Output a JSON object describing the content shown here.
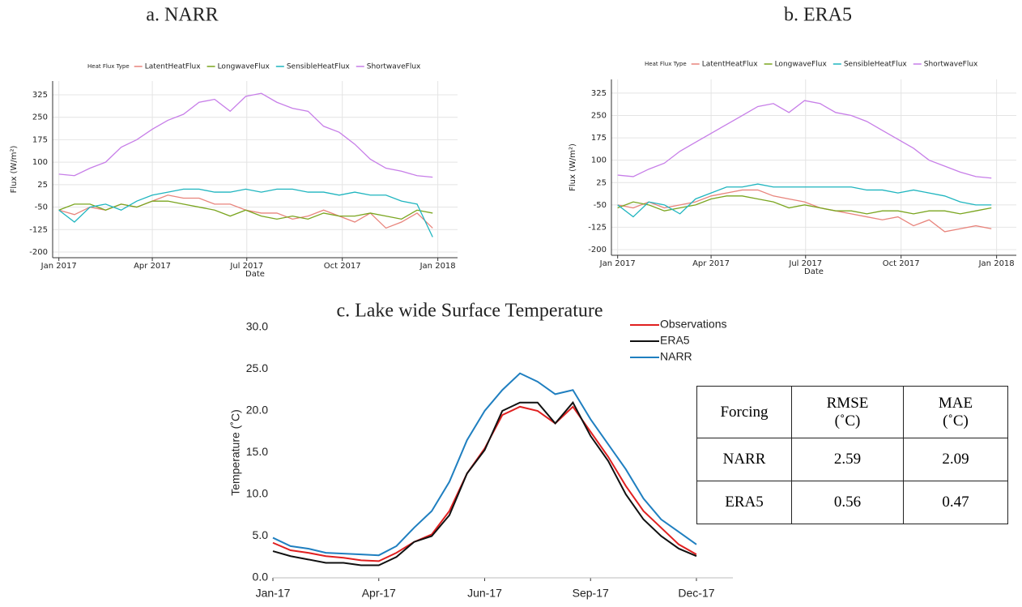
{
  "chart_data": [
    {
      "type": "line",
      "title": "a.  NARR",
      "legend_title": "Heat Flux Type",
      "xlabel": "Date",
      "ylabel": "Flux (W/m²)",
      "grid": true,
      "x": [
        0,
        15,
        30,
        45,
        60,
        75,
        90,
        105,
        120,
        135,
        150,
        165,
        180,
        195,
        210,
        225,
        240,
        255,
        270,
        285,
        300,
        315,
        330,
        345,
        360
      ],
      "xlim": [
        -6,
        384
      ],
      "xticks": [
        {
          "value": 0,
          "label": "Jan 2017"
        },
        {
          "value": 90,
          "label": "Apr 2017"
        },
        {
          "value": 181,
          "label": "Jul 2017"
        },
        {
          "value": 273,
          "label": "Oct 2017"
        },
        {
          "value": 365,
          "label": "Jan 2018"
        }
      ],
      "ylim": [
        -219,
        371
      ],
      "yticks": [
        -200,
        -125,
        -50,
        25,
        100,
        175,
        250,
        325
      ],
      "series": [
        {
          "name": "LatentHeatFlux",
          "color": "#e8847c",
          "values": [
            -60,
            -75,
            -50,
            -60,
            -40,
            -50,
            -30,
            -10,
            -20,
            -20,
            -40,
            -40,
            -60,
            -70,
            -70,
            -90,
            -80,
            -60,
            -80,
            -100,
            -70,
            -120,
            -100,
            -70,
            -120
          ]
        },
        {
          "name": "LongwaveFlux",
          "color": "#7aa51f",
          "values": [
            -60,
            -40,
            -40,
            -60,
            -40,
            -50,
            -30,
            -30,
            -40,
            -50,
            -60,
            -80,
            -60,
            -80,
            -90,
            -80,
            -90,
            -70,
            -80,
            -80,
            -70,
            -80,
            -90,
            -60,
            -70
          ]
        },
        {
          "name": "SensibleHeatFlux",
          "color": "#1fb5bf",
          "values": [
            -60,
            -100,
            -50,
            -40,
            -60,
            -30,
            -10,
            0,
            10,
            10,
            0,
            0,
            10,
            0,
            10,
            10,
            0,
            0,
            -10,
            0,
            -10,
            -10,
            -30,
            -40,
            -150
          ]
        },
        {
          "name": "ShortwaveFlux",
          "color": "#c77ee8",
          "values": [
            60,
            55,
            80,
            100,
            150,
            175,
            210,
            240,
            260,
            300,
            310,
            270,
            320,
            330,
            300,
            280,
            270,
            220,
            200,
            160,
            110,
            80,
            70,
            55,
            50
          ]
        }
      ]
    },
    {
      "type": "line",
      "title": "b.  ERA5",
      "legend_title": "Heat Flux Type",
      "xlabel": "Date",
      "ylabel": "Flux (W/m²)",
      "grid": true,
      "x": [
        0,
        15,
        30,
        45,
        60,
        75,
        90,
        105,
        120,
        135,
        150,
        165,
        180,
        195,
        210,
        225,
        240,
        255,
        270,
        285,
        300,
        315,
        330,
        345,
        360
      ],
      "xlim": [
        -6,
        384
      ],
      "xticks": [
        {
          "value": 0,
          "label": "Jan 2017"
        },
        {
          "value": 90,
          "label": "Apr 2017"
        },
        {
          "value": 181,
          "label": "Jul 2017"
        },
        {
          "value": 273,
          "label": "Oct 2017"
        },
        {
          "value": 365,
          "label": "Jan 2018"
        }
      ],
      "ylim": [
        -219,
        371
      ],
      "yticks": [
        -200,
        -125,
        -50,
        25,
        100,
        175,
        250,
        325
      ],
      "series": [
        {
          "name": "LatentHeatFlux",
          "color": "#e8847c",
          "values": [
            -50,
            -60,
            -40,
            -60,
            -50,
            -40,
            -20,
            -10,
            0,
            0,
            -20,
            -30,
            -40,
            -60,
            -70,
            -80,
            -90,
            -100,
            -90,
            -120,
            -100,
            -140,
            -130,
            -120,
            -130
          ]
        },
        {
          "name": "LongwaveFlux",
          "color": "#7aa51f",
          "values": [
            -60,
            -40,
            -50,
            -70,
            -60,
            -50,
            -30,
            -20,
            -20,
            -30,
            -40,
            -60,
            -50,
            -60,
            -70,
            -70,
            -80,
            -70,
            -70,
            -80,
            -70,
            -70,
            -80,
            -70,
            -60
          ]
        },
        {
          "name": "SensibleHeatFlux",
          "color": "#1fb5bf",
          "values": [
            -50,
            -90,
            -40,
            -50,
            -80,
            -30,
            -10,
            10,
            10,
            20,
            10,
            10,
            10,
            10,
            10,
            10,
            0,
            0,
            -10,
            0,
            -10,
            -20,
            -40,
            -50,
            -50
          ]
        },
        {
          "name": "ShortwaveFlux",
          "color": "#c77ee8",
          "values": [
            50,
            45,
            70,
            90,
            130,
            160,
            190,
            220,
            250,
            280,
            290,
            260,
            300,
            290,
            260,
            250,
            230,
            200,
            170,
            140,
            100,
            80,
            60,
            45,
            40
          ]
        }
      ]
    },
    {
      "type": "line",
      "title": "c.  Lake wide Surface Temperature",
      "ylabel": "Temperature (˚C)",
      "grid": false,
      "x": [
        0,
        15,
        30,
        45,
        60,
        75,
        90,
        105,
        120,
        135,
        150,
        165,
        180,
        195,
        210,
        225,
        240,
        255,
        270,
        285,
        300,
        315,
        330,
        345,
        360
      ],
      "xlim": [
        0,
        391
      ],
      "xticks": [
        {
          "value": 0,
          "label": "Jan-17"
        },
        {
          "value": 90,
          "label": "Apr-17"
        },
        {
          "value": 180,
          "label": "Jun-17"
        },
        {
          "value": 270,
          "label": "Sep-17"
        },
        {
          "value": 360,
          "label": "Dec-17"
        }
      ],
      "ylim": [
        0,
        30
      ],
      "yticks": [
        {
          "value": 0,
          "label": "0.0"
        },
        {
          "value": 5,
          "label": "5.0"
        },
        {
          "value": 10,
          "label": "10.0"
        },
        {
          "value": 15,
          "label": "15.0"
        },
        {
          "value": 20,
          "label": "20.0"
        },
        {
          "value": 25,
          "label": "25.0"
        },
        {
          "value": 30,
          "label": "30.0"
        }
      ],
      "series": [
        {
          "name": "Observations",
          "color": "#e02020",
          "values": [
            4.2,
            3.3,
            3.0,
            2.6,
            2.4,
            2.1,
            2.0,
            3.0,
            4.3,
            5.2,
            8.0,
            12.5,
            15.5,
            19.5,
            20.5,
            20.0,
            18.5,
            20.5,
            17.5,
            14.5,
            11.0,
            8.0,
            6.0,
            4.0,
            2.8
          ]
        },
        {
          "name": "ERA5",
          "color": "#111111",
          "values": [
            3.2,
            2.6,
            2.2,
            1.8,
            1.8,
            1.5,
            1.5,
            2.5,
            4.3,
            5.0,
            7.5,
            12.5,
            15.3,
            20.0,
            21.0,
            21.0,
            18.5,
            21.0,
            17.0,
            14.0,
            10.0,
            7.0,
            5.0,
            3.5,
            2.6
          ]
        },
        {
          "name": "NARR",
          "color": "#1f7fc0",
          "values": [
            4.8,
            3.8,
            3.5,
            3.0,
            2.9,
            2.8,
            2.7,
            3.8,
            6.0,
            8.0,
            11.5,
            16.5,
            20.0,
            22.5,
            24.5,
            23.5,
            22.0,
            22.5,
            19.0,
            16.0,
            13.0,
            9.5,
            7.0,
            5.5,
            4.0
          ]
        }
      ]
    }
  ],
  "table": {
    "header": [
      "Forcing",
      "RMSE (˚C)",
      "MAE (˚C)"
    ],
    "rows": [
      [
        "NARR",
        "2.59",
        "2.09"
      ],
      [
        "ERA5",
        "0.56",
        "0.47"
      ]
    ]
  }
}
